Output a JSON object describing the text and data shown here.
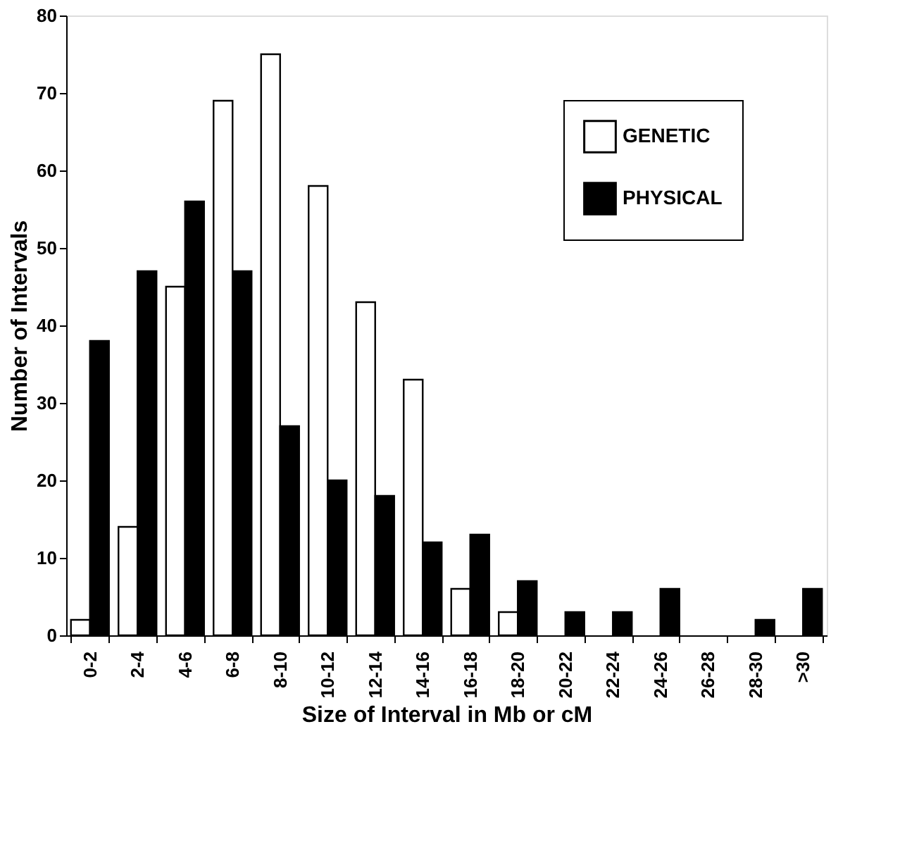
{
  "chart_data": {
    "type": "bar",
    "xlabel": "Size of Interval in Mb or cM",
    "ylabel": "Number of Intervals",
    "categories": [
      "0-2",
      "2-4",
      "4-6",
      "6-8",
      "8-10",
      "10-12",
      "12-14",
      "14-16",
      "16-18",
      "18-20",
      "20-22",
      "22-24",
      "24-26",
      "26-28",
      "28-30",
      ">30"
    ],
    "series": [
      {
        "name": "GENETIC",
        "color": "#ffffff",
        "values": [
          2,
          14,
          45,
          69,
          75,
          58,
          43,
          33,
          6,
          3,
          null,
          null,
          null,
          null,
          null,
          null
        ]
      },
      {
        "name": "PHYSICAL",
        "color": "#000000",
        "values": [
          38,
          47,
          56,
          47,
          27,
          20,
          18,
          12,
          13,
          7,
          3,
          3,
          6,
          null,
          2,
          6
        ]
      }
    ],
    "ylim": [
      0,
      80
    ],
    "yticks": [
      0,
      10,
      20,
      30,
      40,
      50,
      60,
      70,
      80
    ],
    "grid": false,
    "legend": "top right"
  }
}
